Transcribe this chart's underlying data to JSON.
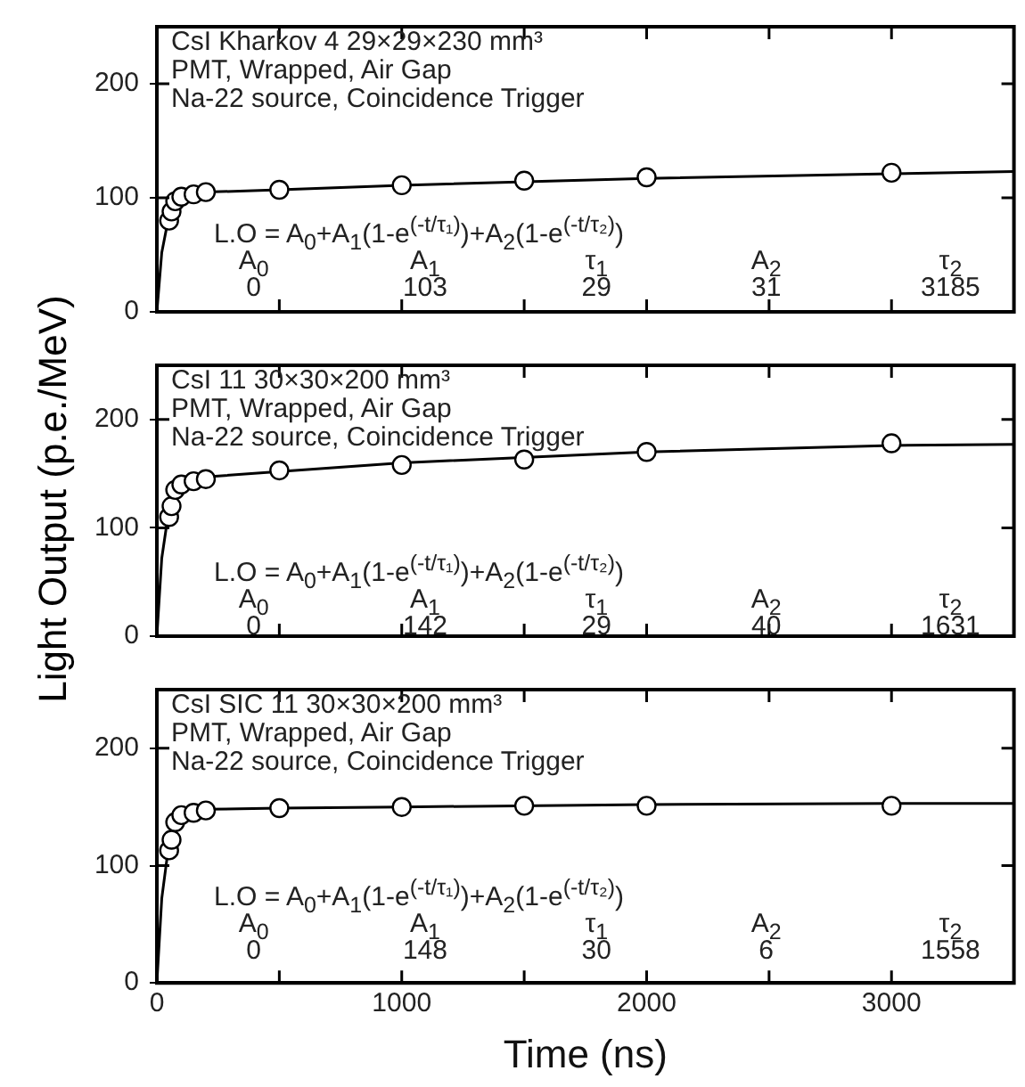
{
  "chart_data": [
    {
      "type": "scatter",
      "ylabel": "Light Output (p.e./MeV)",
      "xlim": [
        0,
        3500
      ],
      "xticks": [
        0,
        {
          "value": 500,
          "label": null
        },
        1000,
        {
          "value": 1500,
          "label": null
        },
        2000,
        {
          "value": 2500,
          "label": null
        },
        3000
      ],
      "ylim": [
        0,
        250
      ],
      "yticks": [
        0,
        100,
        200
      ],
      "tick_labels": "y",
      "grid": false,
      "legend": false,
      "annotations": [
        "CsI Kharkov 4 29×29×230 mm³",
        "PMT, Wrapped, Air Gap",
        "Na-22 source, Coincidence Trigger",
        "L.O = A$_{0}$+A$_{1}$(1-e$^{(-t/τ₁)}$)+A$_{2}$(1-e$^{(-t/τ₂)}$)",
        "A$_{0}$",
        "0",
        "A$_{1}$",
        "103",
        "τ$_{1}$",
        "29",
        "A$_{2}$",
        "31",
        "τ$_{2}$",
        "3185"
      ],
      "series": [
        {
          "type": "scatter",
          "marker": "circle",
          "color": "#000000",
          "x": [
            50,
            60,
            75,
            100,
            150,
            200,
            500,
            1000,
            1500,
            2000,
            3000
          ],
          "values": [
            80,
            88,
            97,
            101,
            103,
            105,
            107,
            111,
            115,
            118,
            122
          ]
        },
        {
          "type": "line",
          "marker": "none",
          "line_style": "solid",
          "color": "#000000",
          "x": [
            0,
            20,
            50,
            100,
            200,
            500,
            1000,
            2000,
            3000,
            3500
          ],
          "values": [
            0,
            52,
            85,
            101,
            105,
            107,
            111,
            117,
            121,
            123
          ]
        }
      ]
    },
    {
      "type": "scatter",
      "xlim": [
        0,
        3500
      ],
      "xticks": [
        0,
        {
          "value": 500,
          "label": null
        },
        1000,
        {
          "value": 1500,
          "label": null
        },
        2000,
        {
          "value": 2500,
          "label": null
        },
        3000
      ],
      "ylim": [
        0,
        250
      ],
      "yticks": [
        0,
        100,
        200
      ],
      "tick_labels": "y",
      "grid": false,
      "legend": false,
      "annotations": [
        "CsI 11 30×30×200 mm³",
        "PMT, Wrapped, Air Gap",
        "Na-22 source, Coincidence Trigger",
        "L.O = A$_{0}$+A$_{1}$(1-e$^{(-t/τ₁)}$)+A$_{2}$(1-e$^{(-t/τ₂)}$)",
        "A$_{0}$",
        "0",
        "A$_{1}$",
        "142",
        "τ$_{1}$",
        "29",
        "A$_{2}$",
        "40",
        "τ$_{2}$",
        "1631"
      ],
      "series": [
        {
          "type": "scatter",
          "marker": "circle",
          "color": "#000000",
          "x": [
            50,
            60,
            75,
            100,
            150,
            200,
            500,
            1000,
            1500,
            2000,
            3000
          ],
          "values": [
            110,
            120,
            135,
            140,
            143,
            145,
            153,
            158,
            163,
            170,
            178
          ]
        },
        {
          "type": "line",
          "marker": "none",
          "line_style": "solid",
          "color": "#000000",
          "x": [
            0,
            20,
            50,
            100,
            200,
            500,
            1000,
            2000,
            3000,
            3500
          ],
          "values": [
            0,
            72,
            118,
            140,
            147,
            152,
            160,
            170,
            176,
            177
          ]
        }
      ]
    },
    {
      "type": "scatter",
      "xlabel": "Time (ns)",
      "xlim": [
        0,
        3500
      ],
      "xticks": [
        0,
        {
          "value": 500,
          "label": null
        },
        1000,
        {
          "value": 1500,
          "label": null
        },
        2000,
        {
          "value": 2500,
          "label": null
        },
        3000
      ],
      "ylim": [
        0,
        250
      ],
      "yticks": [
        0,
        100,
        200
      ],
      "grid": false,
      "legend": false,
      "annotations": [
        "CsI SIC 11 30×30×200 mm³",
        "PMT, Wrapped, Air Gap",
        "Na-22 source, Coincidence Trigger",
        "L.O = A$_{0}$+A$_{1}$(1-e$^{(-t/τ₁)}$)+A$_{2}$(1-e$^{(-t/τ₂)}$)",
        "A$_{0}$",
        "0",
        "A$_{1}$",
        "148",
        "τ$_{1}$",
        "30",
        "A$_{2}$",
        "6",
        "τ$_{2}$",
        "1558"
      ],
      "series": [
        {
          "type": "scatter",
          "marker": "circle",
          "color": "#000000",
          "x": [
            50,
            60,
            75,
            100,
            150,
            200,
            500,
            1000,
            1500,
            2000,
            3000
          ],
          "values": [
            113,
            122,
            137,
            143,
            145,
            147,
            149,
            150,
            151,
            151,
            151
          ]
        },
        {
          "type": "line",
          "marker": "none",
          "line_style": "solid",
          "color": "#000000",
          "x": [
            0,
            20,
            50,
            100,
            200,
            500,
            1000,
            2000,
            3000,
            3500
          ],
          "values": [
            0,
            72,
            120,
            143,
            148,
            149,
            150,
            152,
            153,
            153
          ]
        }
      ]
    }
  ]
}
